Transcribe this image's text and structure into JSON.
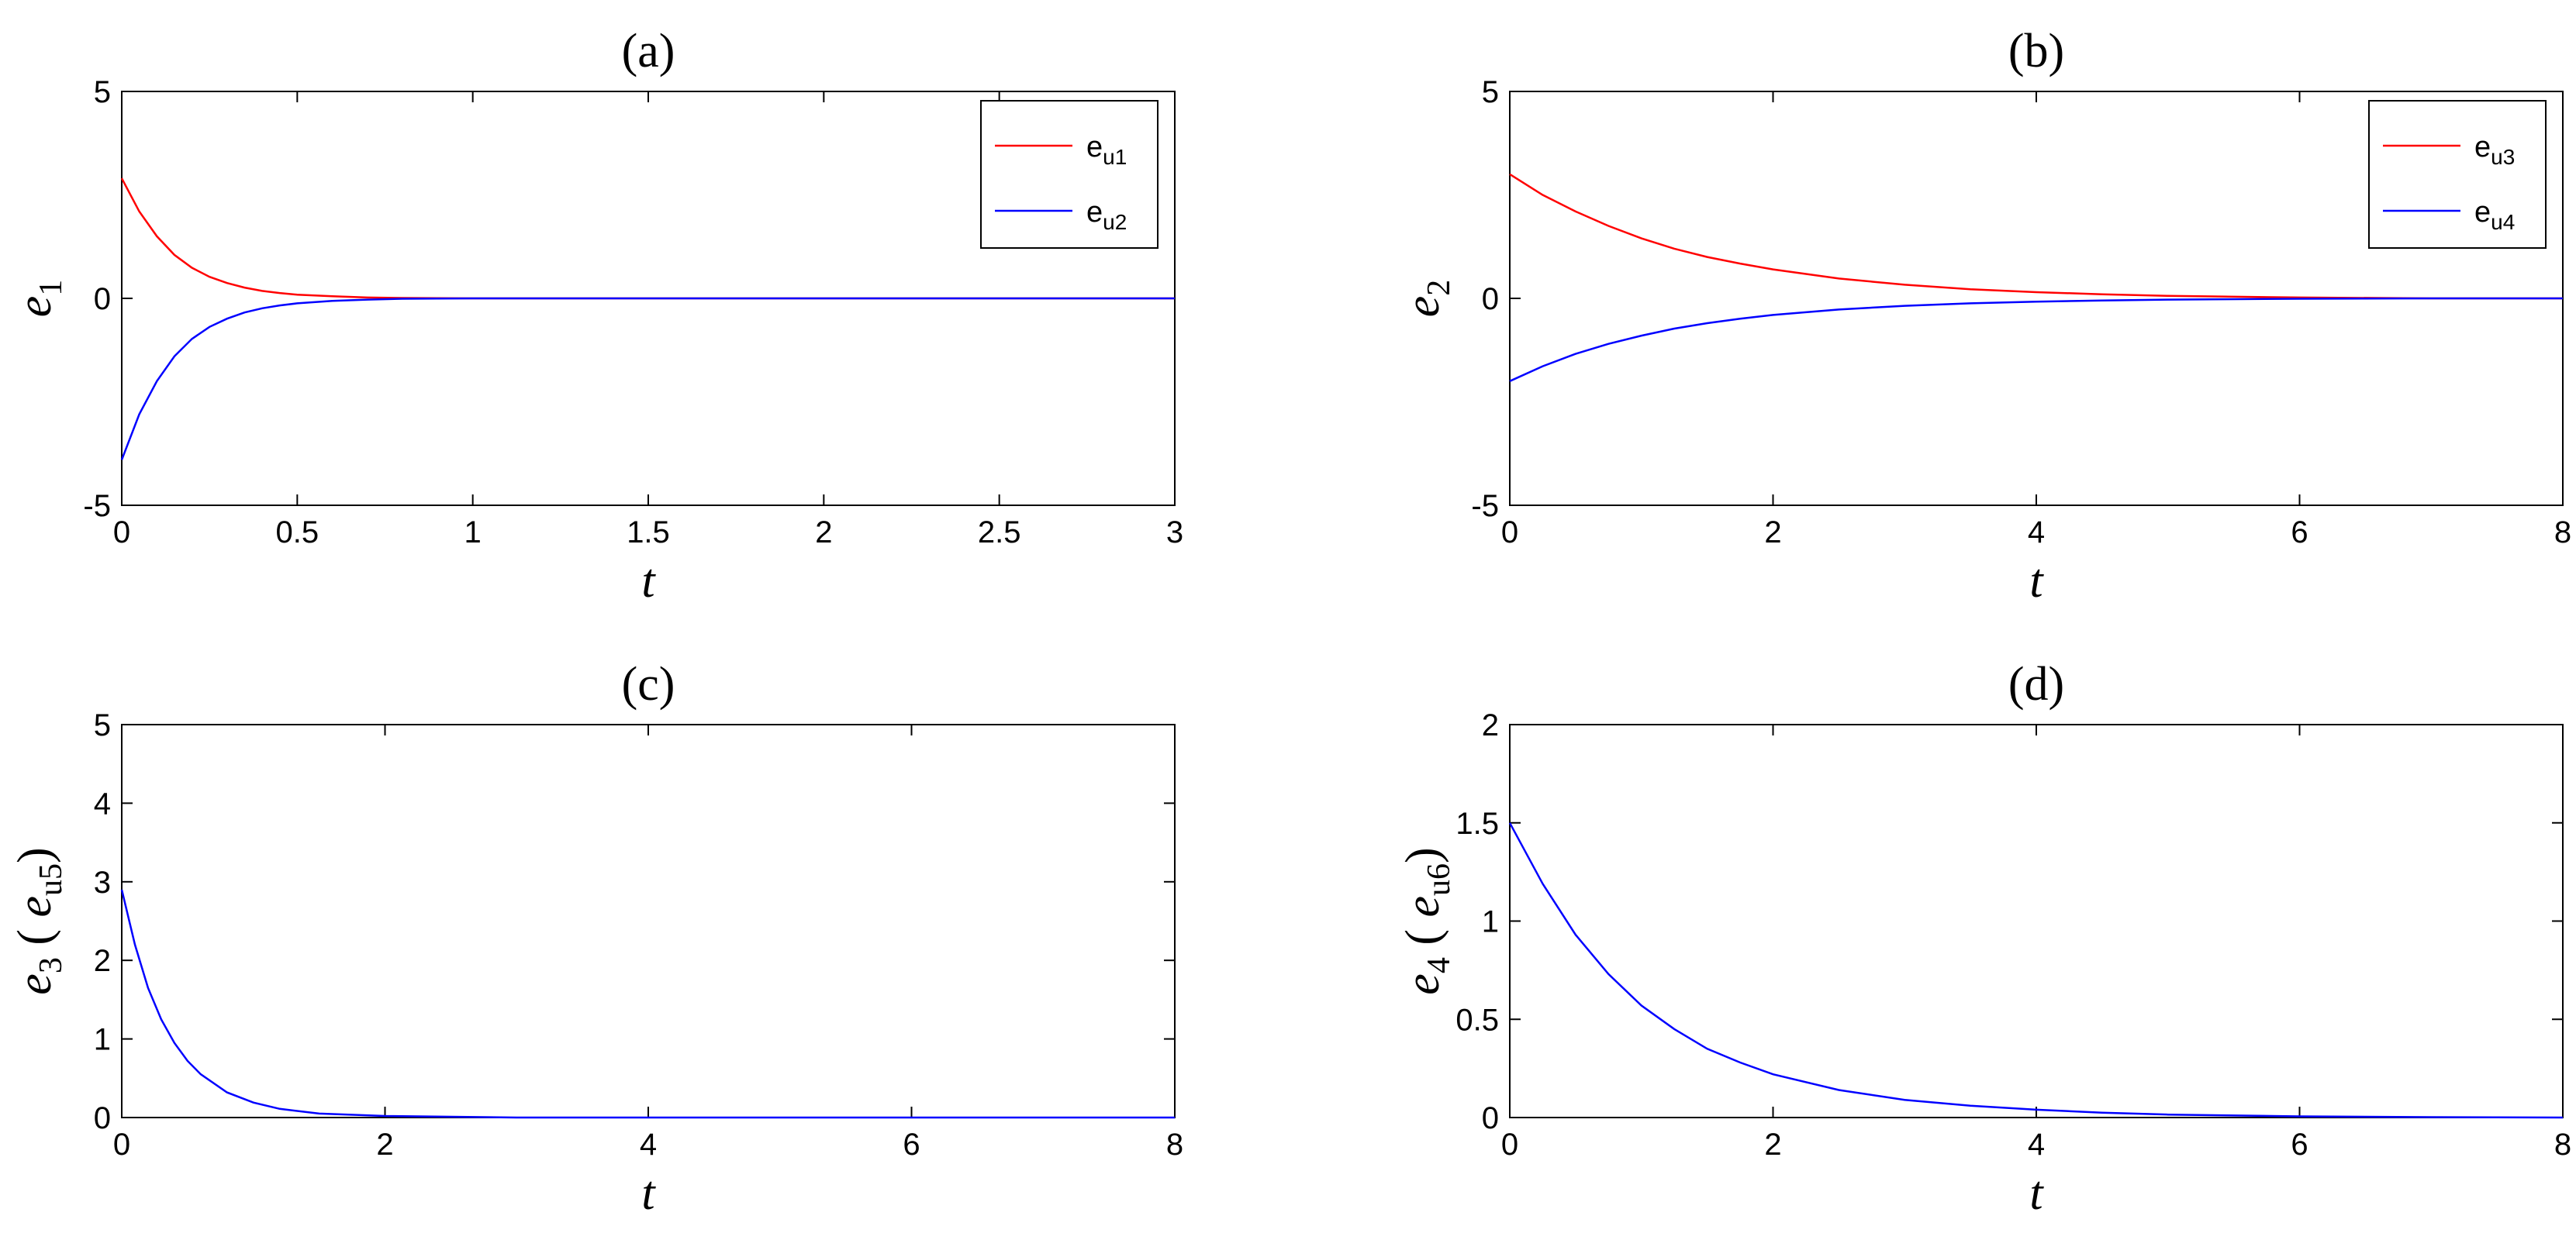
{
  "chart_data": [
    {
      "id": "a",
      "type": "line",
      "title": "(a)",
      "xlabel": "t",
      "ylabel": {
        "base": "e",
        "sub": "1",
        "extra": []
      },
      "xlim": [
        0,
        3
      ],
      "ylim": [
        -5,
        5
      ],
      "xticks": [
        0,
        0.5,
        1,
        1.5,
        2,
        2.5,
        3
      ],
      "xtick_labels": [
        "0",
        "0.5",
        "1",
        "1.5",
        "2",
        "2.5",
        "3"
      ],
      "yticks": [
        -5,
        0,
        5
      ],
      "ytick_labels": [
        "-5",
        "0",
        "5"
      ],
      "grid": false,
      "legend_position": "top-right",
      "series": [
        {
          "name": "e_u1",
          "legend_base": "e",
          "legend_sub": "u1",
          "color": "#ff0000",
          "x": [
            0,
            0.05,
            0.1,
            0.15,
            0.2,
            0.25,
            0.3,
            0.35,
            0.4,
            0.45,
            0.5,
            0.6,
            0.7,
            0.8,
            1.0,
            1.5,
            2.0,
            2.5,
            3.0
          ],
          "y": [
            2.9,
            2.1,
            1.5,
            1.05,
            0.74,
            0.52,
            0.37,
            0.26,
            0.18,
            0.13,
            0.09,
            0.05,
            0.02,
            0.01,
            0,
            0,
            0,
            0,
            0
          ]
        },
        {
          "name": "e_u2",
          "legend_base": "e",
          "legend_sub": "u2",
          "color": "#0000ff",
          "x": [
            0,
            0.05,
            0.1,
            0.15,
            0.2,
            0.25,
            0.3,
            0.35,
            0.4,
            0.45,
            0.5,
            0.6,
            0.7,
            0.8,
            1.0,
            1.5,
            2.0,
            2.5,
            3.0
          ],
          "y": [
            -3.9,
            -2.8,
            -2.0,
            -1.4,
            -0.98,
            -0.69,
            -0.49,
            -0.34,
            -0.24,
            -0.17,
            -0.12,
            -0.06,
            -0.03,
            -0.01,
            0,
            0,
            0,
            0,
            0
          ]
        }
      ]
    },
    {
      "id": "b",
      "type": "line",
      "title": "(b)",
      "xlabel": "t",
      "ylabel": {
        "base": "e",
        "sub": "2",
        "extra": []
      },
      "xlim": [
        0,
        8
      ],
      "ylim": [
        -5,
        5
      ],
      "xticks": [
        0,
        2,
        4,
        6,
        8
      ],
      "xtick_labels": [
        "0",
        "2",
        "4",
        "6",
        "8"
      ],
      "yticks": [
        -5,
        0,
        5
      ],
      "ytick_labels": [
        "-5",
        "0",
        "5"
      ],
      "grid": false,
      "legend_position": "top-right",
      "series": [
        {
          "name": "e_u3",
          "legend_base": "e",
          "legend_sub": "u3",
          "color": "#ff0000",
          "x": [
            0,
            0.25,
            0.5,
            0.75,
            1.0,
            1.25,
            1.5,
            1.75,
            2.0,
            2.5,
            3.0,
            3.5,
            4.0,
            4.5,
            5.0,
            6.0,
            7.0,
            8.0
          ],
          "y": [
            3.0,
            2.5,
            2.1,
            1.75,
            1.45,
            1.2,
            1.0,
            0.84,
            0.7,
            0.48,
            0.33,
            0.22,
            0.15,
            0.1,
            0.06,
            0.02,
            0,
            0
          ]
        },
        {
          "name": "e_u4",
          "legend_base": "e",
          "legend_sub": "u4",
          "color": "#0000ff",
          "x": [
            0,
            0.25,
            0.5,
            0.75,
            1.0,
            1.25,
            1.5,
            1.75,
            2.0,
            2.5,
            3.0,
            3.5,
            4.0,
            4.5,
            5.0,
            6.0,
            7.0,
            8.0
          ],
          "y": [
            -2.0,
            -1.64,
            -1.34,
            -1.1,
            -0.9,
            -0.73,
            -0.6,
            -0.49,
            -0.4,
            -0.27,
            -0.18,
            -0.12,
            -0.08,
            -0.05,
            -0.03,
            -0.01,
            0,
            0
          ]
        }
      ]
    },
    {
      "id": "c",
      "type": "line",
      "title": "(c)",
      "xlabel": "t",
      "ylabel": {
        "base": "e",
        "sub": "3",
        "extra": [
          " ( ",
          {
            "base": "e",
            "sub": "u5"
          },
          ")"
        ]
      },
      "xlim": [
        0,
        8
      ],
      "ylim": [
        0,
        5
      ],
      "xticks": [
        0,
        2,
        4,
        6,
        8
      ],
      "xtick_labels": [
        "0",
        "2",
        "4",
        "6",
        "8"
      ],
      "yticks": [
        0,
        1,
        2,
        3,
        4,
        5
      ],
      "ytick_labels": [
        "0",
        "1",
        "2",
        "3",
        "4",
        "5"
      ],
      "grid": false,
      "legend_position": "none",
      "series": [
        {
          "name": "",
          "color": "#0000ff",
          "x": [
            0,
            0.1,
            0.2,
            0.3,
            0.4,
            0.5,
            0.6,
            0.8,
            1.0,
            1.2,
            1.5,
            2.0,
            2.5,
            3.0,
            4.0,
            5.0,
            6.0,
            7.0,
            8.0
          ],
          "y": [
            2.9,
            2.2,
            1.65,
            1.25,
            0.95,
            0.72,
            0.55,
            0.32,
            0.19,
            0.11,
            0.05,
            0.02,
            0.01,
            0,
            0,
            0,
            0,
            0,
            0
          ]
        }
      ]
    },
    {
      "id": "d",
      "type": "line",
      "title": "(d)",
      "xlabel": "t",
      "ylabel": {
        "base": "e",
        "sub": "4",
        "extra": [
          " ( ",
          {
            "base": "e",
            "sub": "u6"
          },
          ")"
        ]
      },
      "xlim": [
        0,
        8
      ],
      "ylim": [
        0,
        2
      ],
      "xticks": [
        0,
        2,
        4,
        6,
        8
      ],
      "xtick_labels": [
        "0",
        "2",
        "4",
        "6",
        "8"
      ],
      "yticks": [
        0,
        0.5,
        1,
        1.5,
        2
      ],
      "ytick_labels": [
        "0",
        "0.5",
        "1",
        "1.5",
        "2"
      ],
      "grid": false,
      "legend_position": "none",
      "series": [
        {
          "name": "",
          "color": "#0000ff",
          "x": [
            0,
            0.25,
            0.5,
            0.75,
            1.0,
            1.25,
            1.5,
            1.75,
            2.0,
            2.5,
            3.0,
            3.5,
            4.0,
            4.5,
            5.0,
            6.0,
            7.0,
            8.0
          ],
          "y": [
            1.5,
            1.19,
            0.93,
            0.73,
            0.57,
            0.45,
            0.35,
            0.28,
            0.22,
            0.14,
            0.09,
            0.06,
            0.04,
            0.025,
            0.015,
            0.006,
            0.002,
            0
          ]
        }
      ]
    }
  ]
}
